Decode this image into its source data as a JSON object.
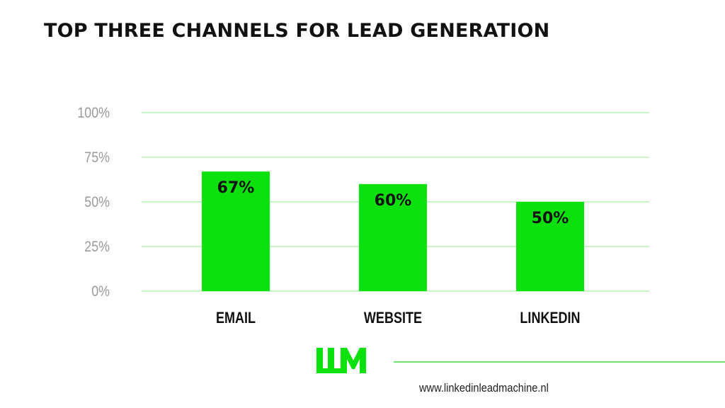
{
  "chart_data": {
    "type": "bar",
    "title": "TOP THREE CHANNELS FOR LEAD GENERATION",
    "categories": [
      "EMAIL",
      "WEBSITE",
      "LINKEDIN"
    ],
    "values": [
      67,
      60,
      50
    ],
    "data_labels": [
      "67%",
      "60%",
      "50%"
    ],
    "y_ticks": [
      "0%",
      "25%",
      "50%",
      "75%",
      "100%"
    ],
    "y_tick_values": [
      0,
      25,
      50,
      75,
      100
    ],
    "ylim": [
      0,
      100
    ],
    "grid": true,
    "bar_color": "#0de10d",
    "grid_color": "#c8f5c8"
  },
  "footer": {
    "logo_text": "LLM",
    "url": "www.linkedinleadmachine.nl"
  }
}
